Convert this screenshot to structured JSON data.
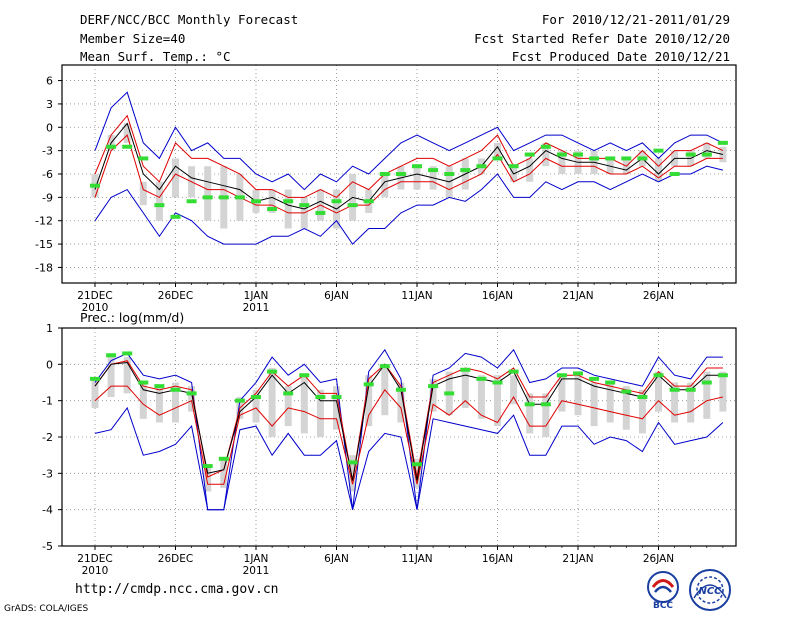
{
  "header": {
    "title": "DERF/NCC/BCC Monthly Forecast",
    "member_size": "Member Size=40",
    "variable": "Mean Surf. Temp.: °C",
    "period": "For 2010/12/21-2011/01/29",
    "started": "Fcst Started Refer Date 2010/12/20",
    "produced": "Fcst Produced Date 2010/12/21"
  },
  "footer": {
    "url": "http://cmdp.ncc.cma.gov.cn",
    "credit": "GrADS: COLA/IGES",
    "logo1_text": "BCC",
    "logo2_text": "NCC"
  },
  "colors": {
    "ensemble_max_min": "#0000cc",
    "ensemble_spread": "#e00000",
    "ensemble_mean": "#000000",
    "member_box": "#d4d4d4",
    "observation_mark": "#33dd33"
  },
  "chart_data": [
    {
      "type": "line",
      "title": "Mean Surf. Temp.: °C",
      "ylim": [
        -20,
        8
      ],
      "yticks": [
        "6",
        "3",
        "0",
        "-3",
        "-6",
        "-9",
        "-12",
        "-15",
        "-18"
      ],
      "ytick_values": [
        6,
        3,
        0,
        -3,
        -6,
        -9,
        -12,
        -15,
        -18
      ],
      "xlim": [
        0,
        39
      ],
      "xticks": [
        "21DEC",
        "26DEC",
        "1JAN",
        "6JAN",
        "11JAN",
        "16JAN",
        "21JAN",
        "26JAN"
      ],
      "xtick_days": [
        0,
        5,
        10,
        15,
        20,
        25,
        30,
        35
      ],
      "xtick_sublabels": [
        "2010",
        "",
        "2011",
        "",
        "",
        "",
        "",
        ""
      ],
      "series": [
        {
          "name": "max",
          "values": [
            -3,
            2.5,
            4.5,
            -2,
            -4,
            0,
            -3,
            -2,
            -4,
            -4,
            -6,
            -7,
            -6,
            -8,
            -6,
            -7,
            -5,
            -6,
            -4,
            -2,
            -1,
            -2,
            -3,
            -2,
            -1,
            0,
            -3,
            -2,
            -1,
            -1,
            -2,
            -3,
            -2,
            -3,
            -2,
            -4,
            -2,
            -1,
            -1,
            -2
          ]
        },
        {
          "name": "upper",
          "values": [
            -6,
            -1,
            1.5,
            -5,
            -7,
            -2,
            -4,
            -4,
            -5,
            -6,
            -8,
            -8,
            -9,
            -9,
            -8,
            -9,
            -7,
            -8,
            -6,
            -5,
            -4,
            -4,
            -5,
            -4,
            -3,
            -1,
            -5,
            -4,
            -2,
            -3,
            -4,
            -4,
            -4,
            -5,
            -3,
            -5,
            -3,
            -3,
            -2,
            -3
          ]
        },
        {
          "name": "mean",
          "values": [
            -8,
            -2,
            0.5,
            -6,
            -8,
            -5,
            -6.5,
            -7,
            -7.5,
            -8,
            -9.5,
            -9,
            -10,
            -10.5,
            -9.5,
            -10.5,
            -9,
            -9.5,
            -7,
            -6.5,
            -6,
            -6.5,
            -7,
            -6,
            -5,
            -2.5,
            -6,
            -5,
            -3,
            -4,
            -4.5,
            -4.5,
            -5,
            -5.5,
            -4,
            -6,
            -4,
            -4,
            -3,
            -3.5
          ]
        },
        {
          "name": "lower",
          "values": [
            -9,
            -3,
            -1,
            -8,
            -9,
            -6,
            -7,
            -8,
            -8,
            -9,
            -10,
            -10,
            -11,
            -11,
            -10,
            -11,
            -10,
            -10,
            -8,
            -7,
            -7,
            -7,
            -8,
            -7,
            -6,
            -3.5,
            -7,
            -6,
            -4,
            -5,
            -5,
            -5,
            -6,
            -6,
            -5,
            -6.5,
            -5,
            -5,
            -4,
            -4
          ]
        },
        {
          "name": "min",
          "values": [
            -12,
            -9,
            -8,
            -11,
            -14,
            -11,
            -12,
            -14,
            -15,
            -15,
            -15,
            -14,
            -14,
            -13,
            -14,
            -12,
            -15,
            -13,
            -13,
            -11,
            -10,
            -10,
            -9,
            -9.5,
            -8,
            -6,
            -9,
            -9,
            -7,
            -8,
            -7,
            -7,
            -8,
            -7,
            -6,
            -7,
            -6,
            -6,
            -5,
            -5.5
          ]
        },
        {
          "name": "box_top",
          "values": [
            -6,
            -1,
            0.5,
            -7,
            -7,
            -4,
            -5,
            -5,
            -5,
            -6,
            -8,
            -8,
            -8,
            -9,
            -8,
            -8,
            -6,
            -8,
            -6,
            -5,
            -5,
            -5,
            -5,
            -4,
            -4,
            -2,
            -5,
            -4,
            -2,
            -3,
            -3,
            -3,
            -4,
            -4,
            -3,
            -4,
            -3,
            -3,
            -2,
            -2.5
          ]
        },
        {
          "name": "box_bottom",
          "values": [
            -9,
            -3,
            -2,
            -10,
            -12,
            -9,
            -9,
            -12,
            -13,
            -12,
            -11,
            -11,
            -13,
            -13,
            -12,
            -13,
            -12,
            -11,
            -9,
            -8,
            -8,
            -8,
            -9,
            -8,
            -6,
            -4,
            -7,
            -7,
            -5,
            -6,
            -6,
            -6,
            -6,
            -6,
            -5,
            -7,
            -5,
            -5,
            -4,
            -4.5
          ]
        },
        {
          "name": "observation",
          "values": [
            -7.5,
            -2.5,
            -2.5,
            -4,
            -10,
            -11.5,
            -9.5,
            -9,
            -9,
            -9,
            -9.5,
            -10.5,
            -9.5,
            -10,
            -11,
            -9.5,
            -10,
            -9.5,
            -6,
            -6,
            -5,
            -5.5,
            -6,
            -5.5,
            -5,
            -4,
            -5,
            -3.5,
            -2.5,
            -3.5,
            -3.5,
            -4,
            -4,
            -4,
            -4,
            -3,
            -6,
            -3.5,
            -3.5,
            -2
          ]
        }
      ]
    },
    {
      "type": "line",
      "title": "Prec.: log(mm/d)",
      "ylim": [
        -5,
        1
      ],
      "yticks": [
        "1",
        "0",
        "-1",
        "-2",
        "-3",
        "-4",
        "-5"
      ],
      "ytick_values": [
        1,
        0,
        -1,
        -2,
        -3,
        -4,
        -5
      ],
      "xlim": [
        0,
        39
      ],
      "xticks": [
        "21DEC",
        "26DEC",
        "1JAN",
        "6JAN",
        "11JAN",
        "16JAN",
        "21JAN",
        "26JAN"
      ],
      "xtick_days": [
        0,
        5,
        10,
        15,
        20,
        25,
        30,
        35
      ],
      "xtick_sublabels": [
        "2010",
        "",
        "2011",
        "",
        "",
        "",
        "",
        ""
      ],
      "series": [
        {
          "name": "max",
          "values": [
            -0.5,
            0.1,
            0.3,
            -0.3,
            -0.4,
            -0.3,
            -0.5,
            -4,
            -4,
            -1,
            -0.5,
            0.2,
            -0.3,
            0,
            -0.5,
            -0.4,
            -4,
            -0.2,
            0.4,
            -0.4,
            -4,
            -0.3,
            -0.1,
            0.3,
            0.2,
            -0.1,
            0.4,
            -0.5,
            -0.4,
            -0.1,
            -0.1,
            -0.3,
            -0.4,
            -0.5,
            -0.6,
            0.2,
            -0.3,
            -0.4,
            0.2,
            0.2
          ]
        },
        {
          "name": "upper",
          "values": [
            -0.6,
            0,
            0.1,
            -0.6,
            -0.7,
            -0.6,
            -0.7,
            -3.1,
            -2.9,
            -1.2,
            -0.8,
            -0.2,
            -0.6,
            -0.3,
            -0.8,
            -0.8,
            -3.2,
            -0.4,
            0,
            -0.6,
            -3.1,
            -0.5,
            -0.3,
            -0.1,
            -0.2,
            -0.4,
            -0.1,
            -0.9,
            -0.9,
            -0.3,
            -0.3,
            -0.5,
            -0.6,
            -0.7,
            -0.8,
            -0.2,
            -0.6,
            -0.6,
            -0.1,
            -0.1
          ]
        },
        {
          "name": "mean",
          "values": [
            -0.6,
            0,
            0.05,
            -0.7,
            -0.8,
            -0.7,
            -0.8,
            -3,
            -2.9,
            -1.3,
            -0.9,
            -0.3,
            -0.8,
            -0.5,
            -1,
            -1,
            -3.2,
            -0.6,
            0,
            -0.7,
            -3.2,
            -0.6,
            -0.4,
            -0.3,
            -0.4,
            -0.5,
            -0.2,
            -1.1,
            -1.1,
            -0.4,
            -0.4,
            -0.6,
            -0.7,
            -0.8,
            -0.9,
            -0.3,
            -0.7,
            -0.7,
            -0.3,
            -0.3
          ]
        },
        {
          "name": "lower",
          "values": [
            -1,
            -0.6,
            -0.6,
            -1.1,
            -1.4,
            -1.2,
            -1,
            -3.3,
            -3.3,
            -1.4,
            -1.2,
            -1.7,
            -1.2,
            -1.3,
            -1.5,
            -1.5,
            -3.3,
            -1.4,
            -0.7,
            -1.2,
            -3.3,
            -1.1,
            -1.4,
            -1,
            -1.4,
            -1.6,
            -0.9,
            -1.7,
            -1.7,
            -1,
            -1.1,
            -1.2,
            -1.3,
            -1.4,
            -1.5,
            -1,
            -1.4,
            -1.3,
            -1,
            -0.9
          ]
        },
        {
          "name": "min",
          "values": [
            -1.9,
            -1.8,
            -1.2,
            -2.5,
            -2.4,
            -2.2,
            -1.7,
            -4,
            -4,
            -1.8,
            -1.7,
            -2.5,
            -1.9,
            -2.5,
            -2.5,
            -2.1,
            -4,
            -2.4,
            -1.9,
            -2,
            -4,
            -1.5,
            -1.6,
            -1.7,
            -1.8,
            -1.9,
            -1.4,
            -2.5,
            -2.5,
            -1.7,
            -1.7,
            -2.2,
            -2,
            -2.1,
            -2.4,
            -1.6,
            -2.2,
            -2.1,
            -2,
            -1.6
          ]
        },
        {
          "name": "box_top",
          "values": [
            -0.4,
            0.2,
            0.2,
            -0.5,
            -0.6,
            -0.5,
            -0.6,
            -2.8,
            -2.6,
            -0.9,
            -0.7,
            -0.1,
            -0.6,
            -0.3,
            -0.7,
            -0.6,
            -2.5,
            -0.3,
            -0.1,
            -0.5,
            -2.6,
            -0.4,
            -0.2,
            -0.2,
            -0.3,
            -0.3,
            -0.3,
            -0.8,
            -0.8,
            -0.3,
            -0.3,
            -0.5,
            -0.5,
            -0.6,
            -0.7,
            -0.2,
            -0.5,
            -0.5,
            -0.2,
            -0.2
          ]
        },
        {
          "name": "box_bottom",
          "values": [
            -1.2,
            -0.9,
            -0.8,
            -1.5,
            -1.6,
            -1.6,
            -1.3,
            -3.5,
            -3.4,
            -1.5,
            -1.6,
            -2,
            -1.7,
            -1.9,
            -2,
            -1.8,
            -3.5,
            -1.7,
            -1.4,
            -1.6,
            -3.4,
            -1.3,
            -1.4,
            -1.2,
            -1.5,
            -1.7,
            -1.1,
            -1.9,
            -2,
            -1.3,
            -1.4,
            -1.7,
            -1.6,
            -1.8,
            -1.9,
            -1.3,
            -1.6,
            -1.6,
            -1.5,
            -1.3
          ]
        },
        {
          "name": "observation",
          "values": [
            -0.4,
            0.25,
            0.3,
            -0.5,
            -0.6,
            -0.7,
            -0.8,
            -2.8,
            -2.6,
            -1,
            -0.9,
            -0.2,
            -0.8,
            -0.3,
            -0.9,
            -0.9,
            -2.7,
            -0.55,
            -0.05,
            -0.7,
            -2.75,
            -0.6,
            -0.8,
            -0.15,
            -0.4,
            -0.5,
            -0.2,
            -1.1,
            -1.1,
            -0.3,
            -0.25,
            -0.4,
            -0.5,
            -0.75,
            -0.9,
            -0.3,
            -0.7,
            -0.7,
            -0.5,
            -0.3
          ]
        }
      ]
    }
  ]
}
